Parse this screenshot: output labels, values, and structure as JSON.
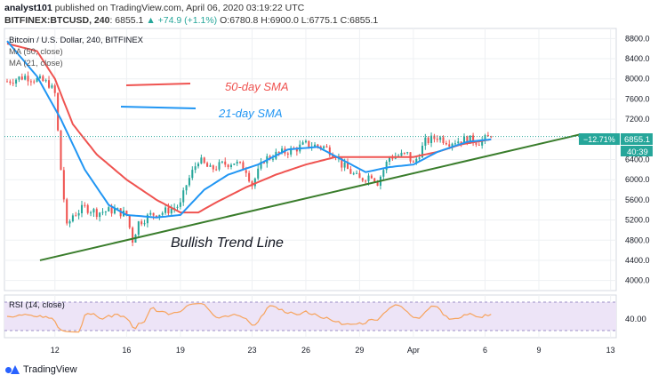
{
  "header": {
    "author": "analyst101",
    "published": "published on TradingView.com, April 06, 2020 03:19:22 UTC",
    "symbol": "BITFINEX:BTCUSD, 240",
    "last": "6855.1",
    "change": "▲ +74.9 (+1.1%)",
    "open_label": "O:",
    "open": "6780.8",
    "high_label": "H:",
    "high": "6900.0",
    "low_label": "L:",
    "low": "6775.1",
    "close_label": "C:",
    "close": "6855.1"
  },
  "legend": {
    "title": "Bitcoin / U.S. Dollar, 240, BITFINEX",
    "ma50": "MA (50, close)",
    "ma21": "MA (21, close)"
  },
  "annotations": {
    "sma50": "50-day SMA",
    "sma21": "21-day SMA",
    "trend": "Bullish Trend Line"
  },
  "price_tags": {
    "pct": "−12.71%",
    "price": "6855.1",
    "timer": "40:39"
  },
  "rsi": {
    "label": "RSI (14, close)",
    "tick": "40.00"
  },
  "footer": {
    "brand": "TradingView"
  },
  "colors": {
    "up": "#26a69a",
    "down": "#ef5350",
    "ma50": "#ef5350",
    "ma21": "#2196f3",
    "trend": "#3a7d2c",
    "rsi": "#f7a35c",
    "rsi_band": "#ede4f7"
  },
  "chart_data": {
    "type": "candlestick",
    "title": "Bitcoin / U.S. Dollar, 240, BITFINEX",
    "ylim": [
      3800,
      9000
    ],
    "y_ticks": [
      8800,
      8400,
      8000,
      7600,
      7200,
      6800,
      6400,
      6000,
      5600,
      5200,
      4800,
      4400,
      4000
    ],
    "x_labels": [
      "12",
      "16",
      "19",
      "23",
      "26",
      "29",
      "Apr",
      "6",
      "9",
      "13"
    ],
    "x_label_index": [
      16,
      40,
      58,
      82,
      100,
      118,
      136,
      160,
      178,
      202
    ],
    "last_index": 162,
    "close_anchors": [
      [
        0,
        7950
      ],
      [
        6,
        8050
      ],
      [
        12,
        7950
      ],
      [
        14,
        7900
      ],
      [
        16,
        7700
      ],
      [
        18,
        6200
      ],
      [
        20,
        5050
      ],
      [
        22,
        5300
      ],
      [
        26,
        5450
      ],
      [
        30,
        5350
      ],
      [
        36,
        5400
      ],
      [
        40,
        5300
      ],
      [
        42,
        4800
      ],
      [
        44,
        5150
      ],
      [
        48,
        5300
      ],
      [
        52,
        5350
      ],
      [
        58,
        5500
      ],
      [
        60,
        5900
      ],
      [
        64,
        6400
      ],
      [
        68,
        6200
      ],
      [
        72,
        6300
      ],
      [
        76,
        6350
      ],
      [
        80,
        6200
      ],
      [
        82,
        5900
      ],
      [
        86,
        6400
      ],
      [
        90,
        6500
      ],
      [
        96,
        6600
      ],
      [
        100,
        6700
      ],
      [
        106,
        6650
      ],
      [
        110,
        6500
      ],
      [
        112,
        6300
      ],
      [
        116,
        6100
      ],
      [
        118,
        6000
      ],
      [
        122,
        6100
      ],
      [
        124,
        5950
      ],
      [
        128,
        6450
      ],
      [
        134,
        6500
      ],
      [
        136,
        6300
      ],
      [
        140,
        6750
      ],
      [
        144,
        6850
      ],
      [
        148,
        6750
      ],
      [
        154,
        6800
      ],
      [
        158,
        6750
      ],
      [
        162,
        6855.1
      ]
    ],
    "ma50_anchors": [
      [
        0,
        8700
      ],
      [
        10,
        8550
      ],
      [
        16,
        8000
      ],
      [
        22,
        7100
      ],
      [
        30,
        6500
      ],
      [
        40,
        6000
      ],
      [
        50,
        5600
      ],
      [
        58,
        5350
      ],
      [
        64,
        5350
      ],
      [
        70,
        5550
      ],
      [
        80,
        5850
      ],
      [
        90,
        6100
      ],
      [
        100,
        6300
      ],
      [
        110,
        6450
      ],
      [
        120,
        6450
      ],
      [
        130,
        6450
      ],
      [
        136,
        6450
      ],
      [
        144,
        6550
      ],
      [
        152,
        6700
      ],
      [
        162,
        6800
      ]
    ],
    "ma21_anchors": [
      [
        0,
        8750
      ],
      [
        10,
        8050
      ],
      [
        18,
        7200
      ],
      [
        26,
        6200
      ],
      [
        34,
        5500
      ],
      [
        40,
        5300
      ],
      [
        50,
        5250
      ],
      [
        58,
        5300
      ],
      [
        66,
        5800
      ],
      [
        74,
        6100
      ],
      [
        84,
        6300
      ],
      [
        94,
        6600
      ],
      [
        104,
        6650
      ],
      [
        112,
        6400
      ],
      [
        120,
        6150
      ],
      [
        128,
        6250
      ],
      [
        136,
        6300
      ],
      [
        144,
        6550
      ],
      [
        154,
        6750
      ],
      [
        162,
        6800
      ]
    ],
    "trend_line": [
      [
        11,
        4400
      ],
      [
        192,
        6900
      ]
    ],
    "rsi_range": [
      30,
      70
    ],
    "rsi_ylim": [
      20,
      80
    ]
  }
}
